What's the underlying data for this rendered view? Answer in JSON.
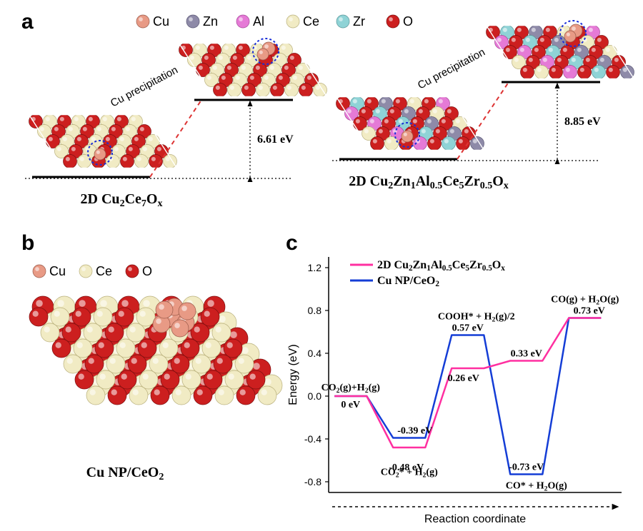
{
  "panels": {
    "a": "a",
    "b": "b",
    "c": "c"
  },
  "atoms": {
    "Cu": {
      "label": "Cu",
      "color": "#e89a85",
      "stroke": "#9a5a4a"
    },
    "Zn": {
      "label": "Zn",
      "color": "#8e8aa8",
      "stroke": "#5a5774"
    },
    "Al": {
      "label": "Al",
      "color": "#e57ad6",
      "stroke": "#a6489a"
    },
    "Ce": {
      "label": "Ce",
      "color": "#f1ebc4",
      "stroke": "#b9b07c"
    },
    "Zr": {
      "label": "Zr",
      "color": "#8fd3d6",
      "stroke": "#5a9699"
    },
    "O": {
      "label": "O",
      "color": "#cc1f1f",
      "stroke": "#7d0f0f"
    }
  },
  "panel_a": {
    "legend_order": [
      "Cu",
      "Zn",
      "Al",
      "Ce",
      "Zr",
      "O"
    ],
    "precipitation_label": "Cu precipitation",
    "left": {
      "formula_html": "2D Cu<sub>2</sub>Ce<sub>7</sub>O<sub>x</sub>",
      "barrier_text": "6.61 eV",
      "barrier_ev": 6.61,
      "dashed_circle_color": "#1a2fd8"
    },
    "right": {
      "formula_html": "2D Cu<sub>2</sub>Zn<sub>1</sub>Al<sub>0.5</sub>Ce<sub>5</sub>Zr<sub>0.5</sub>O<sub>x</sub>",
      "barrier_text": "8.85 eV",
      "barrier_ev": 8.85,
      "dashed_circle_color": "#1a2fd8"
    }
  },
  "panel_b": {
    "legend_order": [
      "Cu",
      "Ce",
      "O"
    ],
    "caption_html": "Cu NP/CeO<sub>2</sub>"
  },
  "panel_c": {
    "type": "energy_diagram",
    "x_label": "Reaction coordinate",
    "y_label": "Energy (eV)",
    "ylim": [
      -0.9,
      1.3
    ],
    "yticks": [
      -0.8,
      -0.4,
      0.0,
      0.4,
      0.8,
      1.2
    ],
    "legend": [
      {
        "label_html": "2D Cu<sub>2</sub>Zn<sub>1</sub>Al<sub>0.5</sub>Ce<sub>5</sub>Zr<sub>0.5</sub>O<sub>x</sub>",
        "color": "#ff2fa0"
      },
      {
        "label_html": "Cu NP/CeO<sub>2</sub>",
        "color": "#143dd6"
      }
    ],
    "line_width": 2.5,
    "steps": [
      {
        "label_html": "CO<sub>2</sub>(g)+H<sub>2</sub>(g)"
      },
      {
        "label_html": "CO<sub>2</sub>* + H<sub>2</sub>(g)"
      },
      {
        "label_html": "COOH* + H<sub>2</sub>(g)/2"
      },
      {
        "label_html": "CO* + H<sub>2</sub>O(g)"
      },
      {
        "label_html": "CO(g) + H<sub>2</sub>O(g)"
      }
    ],
    "series": {
      "pink": {
        "color": "#ff2fa0",
        "values": [
          0.0,
          -0.48,
          0.26,
          0.33,
          0.73
        ],
        "value_labels": [
          "0 eV",
          "-0.48 eV",
          "0.26 eV",
          "0.33 eV",
          "0.73 eV"
        ]
      },
      "blue": {
        "color": "#143dd6",
        "values": [
          0.0,
          -0.39,
          0.57,
          -0.73,
          0.73
        ],
        "value_labels": [
          "0 eV",
          "-0.39 eV",
          "0.57 eV",
          "-0.73 eV",
          "0.73 eV"
        ]
      }
    },
    "background_color": "#ffffff",
    "axis_color": "#000000"
  }
}
